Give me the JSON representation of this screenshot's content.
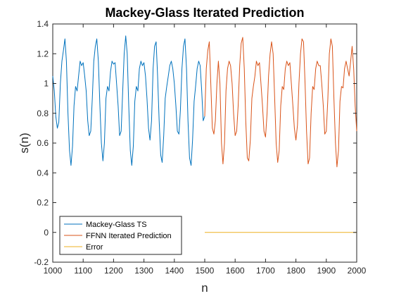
{
  "chart_data": {
    "type": "line",
    "title": "Mackey-Glass Iterated Prediction",
    "xlabel": "n",
    "ylabel": "s(n)",
    "xlim": [
      1000,
      2000
    ],
    "ylim": [
      -0.2,
      1.4
    ],
    "xticks": [
      1000,
      1100,
      1200,
      1300,
      1400,
      1500,
      1600,
      1700,
      1800,
      1900,
      2000
    ],
    "yticks": [
      -0.2,
      0,
      0.2,
      0.4,
      0.6,
      0.8,
      1,
      1.2,
      1.4
    ],
    "xtick_labels": [
      "1000",
      "1100",
      "1200",
      "1300",
      "1400",
      "1500",
      "1600",
      "1700",
      "1800",
      "1900",
      "2000"
    ],
    "ytick_labels": [
      "-0.2",
      "0",
      "0.2",
      "0.4",
      "0.6",
      "0.8",
      "1",
      "1.2",
      "1.4"
    ],
    "grid": false,
    "legend_position": "bottom-left",
    "series": [
      {
        "name": "Mackey-Glass TS",
        "color": "#0072BD",
        "x": [
          1000,
          1005,
          1010,
          1015,
          1020,
          1025,
          1030,
          1035,
          1040,
          1045,
          1050,
          1055,
          1060,
          1065,
          1070,
          1075,
          1080,
          1085,
          1090,
          1095,
          1100,
          1105,
          1110,
          1115,
          1120,
          1125,
          1130,
          1135,
          1140,
          1145,
          1150,
          1155,
          1160,
          1165,
          1170,
          1175,
          1180,
          1185,
          1190,
          1195,
          1200,
          1205,
          1210,
          1215,
          1220,
          1225,
          1230,
          1235,
          1240,
          1245,
          1250,
          1255,
          1260,
          1265,
          1270,
          1275,
          1280,
          1285,
          1290,
          1295,
          1300,
          1305,
          1310,
          1315,
          1320,
          1325,
          1330,
          1335,
          1340,
          1345,
          1350,
          1355,
          1360,
          1365,
          1370,
          1375,
          1380,
          1385,
          1390,
          1395,
          1400,
          1405,
          1410,
          1415,
          1420,
          1425,
          1430,
          1435,
          1440,
          1445,
          1450,
          1455,
          1460,
          1465,
          1470,
          1475,
          1480,
          1485,
          1490,
          1495,
          1500
        ],
        "y": [
          1.05,
          0.95,
          0.78,
          0.7,
          0.74,
          1.0,
          1.15,
          1.22,
          1.3,
          1.15,
          0.8,
          0.55,
          0.45,
          0.58,
          0.85,
          0.98,
          0.95,
          1.05,
          1.15,
          1.12,
          1.14,
          1.05,
          0.95,
          0.75,
          0.65,
          0.68,
          0.9,
          1.15,
          1.25,
          1.3,
          1.15,
          0.85,
          0.6,
          0.48,
          0.6,
          0.9,
          0.98,
          0.95,
          1.08,
          1.15,
          1.13,
          1.14,
          1.0,
          0.85,
          0.65,
          0.68,
          0.95,
          1.2,
          1.32,
          1.2,
          0.85,
          0.55,
          0.45,
          0.58,
          0.88,
          0.98,
          0.95,
          1.1,
          1.15,
          1.12,
          1.14,
          1.05,
          0.9,
          0.7,
          0.62,
          0.75,
          1.1,
          1.25,
          1.28,
          1.05,
          0.75,
          0.52,
          0.47,
          0.65,
          0.9,
          0.98,
          1.05,
          1.12,
          1.15,
          1.1,
          1.0,
          0.85,
          0.68,
          0.66,
          0.82,
          1.1,
          1.25,
          1.3,
          1.1,
          0.75,
          0.5,
          0.45,
          0.62,
          0.88,
          0.98,
          1.1,
          1.15,
          1.12,
          0.95,
          0.75,
          0.78
        ]
      },
      {
        "name": "FFNN Iterated Prediction",
        "color": "#D95319",
        "x": [
          1500,
          1505,
          1510,
          1515,
          1520,
          1525,
          1530,
          1535,
          1540,
          1545,
          1550,
          1555,
          1560,
          1565,
          1570,
          1575,
          1580,
          1585,
          1590,
          1595,
          1600,
          1605,
          1610,
          1615,
          1620,
          1625,
          1630,
          1635,
          1640,
          1645,
          1650,
          1655,
          1660,
          1665,
          1670,
          1675,
          1680,
          1685,
          1690,
          1695,
          1700,
          1705,
          1710,
          1715,
          1720,
          1725,
          1730,
          1735,
          1740,
          1745,
          1750,
          1755,
          1760,
          1765,
          1770,
          1775,
          1780,
          1785,
          1790,
          1795,
          1800,
          1805,
          1810,
          1815,
          1820,
          1825,
          1830,
          1835,
          1840,
          1845,
          1850,
          1855,
          1860,
          1865,
          1870,
          1875,
          1880,
          1885,
          1890,
          1895,
          1900,
          1905,
          1910,
          1915,
          1920,
          1925,
          1930,
          1935,
          1940,
          1945,
          1950,
          1955,
          1960,
          1965,
          1970,
          1975,
          1980,
          1985,
          1990,
          1995,
          2000
        ],
        "y": [
          0.78,
          1.1,
          1.22,
          1.28,
          1.0,
          0.7,
          0.66,
          0.75,
          1.0,
          1.15,
          1.0,
          0.6,
          0.46,
          0.6,
          0.95,
          1.1,
          1.15,
          1.12,
          1.0,
          0.8,
          0.65,
          0.68,
          0.85,
          1.12,
          1.27,
          1.31,
          1.1,
          0.75,
          0.5,
          0.48,
          0.62,
          0.9,
          0.98,
          1.05,
          1.15,
          1.12,
          1.14,
          1.0,
          0.85,
          0.68,
          0.64,
          0.8,
          1.05,
          1.2,
          1.28,
          1.2,
          0.9,
          0.6,
          0.47,
          0.55,
          0.85,
          0.98,
          0.96,
          1.1,
          1.15,
          1.12,
          1.14,
          1.0,
          0.85,
          0.7,
          0.62,
          0.72,
          1.0,
          1.2,
          1.3,
          1.28,
          1.0,
          0.68,
          0.46,
          0.5,
          0.8,
          0.98,
          0.96,
          1.1,
          1.15,
          1.12,
          1.12,
          1.0,
          0.85,
          0.66,
          0.68,
          0.9,
          1.2,
          1.3,
          1.25,
          0.9,
          0.6,
          0.44,
          0.55,
          0.88,
          0.98,
          0.97,
          1.1,
          1.15,
          1.1,
          1.05,
          1.15,
          1.25,
          1.1,
          0.85,
          0.68
        ]
      },
      {
        "name": "Error",
        "color": "#EDB120",
        "x": [
          1500,
          1600,
          1700,
          1800,
          1900,
          2000
        ],
        "y": [
          0,
          0,
          0,
          0,
          0,
          0
        ]
      }
    ]
  }
}
